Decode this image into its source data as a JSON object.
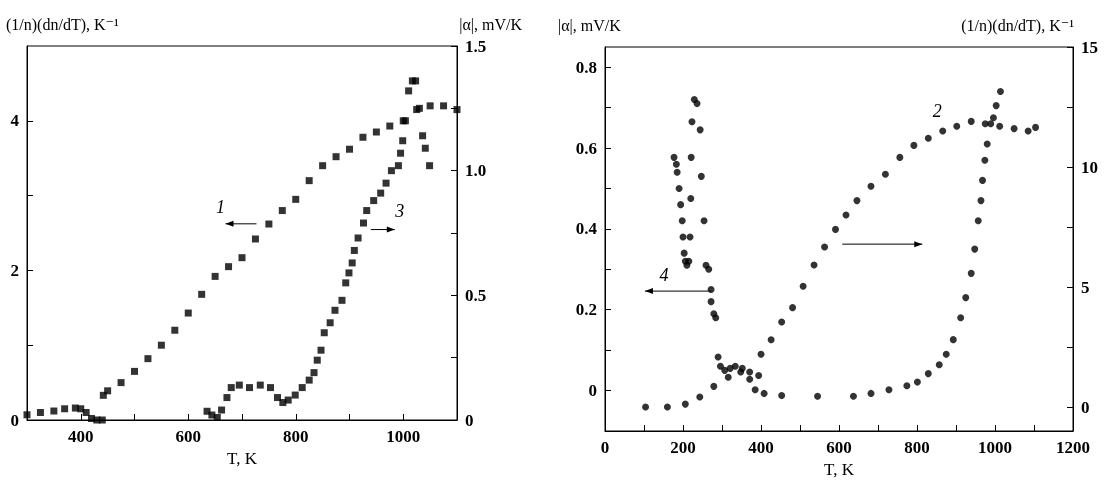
{
  "chart_data": [
    {
      "type": "scatter",
      "xlabel": "T, K",
      "ylabel": "(1/n)(dn/dT), K⁻¹",
      "y2label": "|α|, mV/K",
      "marker": "square",
      "xlim": [
        300,
        1100
      ],
      "xticks": [
        400,
        {
          "value": 500,
          "label": null
        },
        600,
        {
          "value": 700,
          "label": null
        },
        800,
        {
          "value": 900,
          "label": null
        },
        1000
      ],
      "ylim": [
        0,
        5
      ],
      "yticks": [
        0,
        {
          "value": 1,
          "label": null
        },
        2,
        {
          "value": 3,
          "label": null
        },
        4
      ],
      "y2lim": [
        0,
        1.5
      ],
      "y2ticks": [
        0,
        {
          "value": 0.25,
          "label": null
        },
        0.5,
        {
          "value": 0.75,
          "label": null
        },
        {
          "value": 1,
          "label": "1.0"
        },
        {
          "value": 1.25,
          "label": null
        },
        1.5
      ],
      "series": [
        {
          "color": "#000000",
          "x": [
            300,
            325,
            350,
            370,
            390,
            400,
            410,
            420,
            430,
            440,
            442,
            450,
            475,
            500,
            525,
            550,
            575,
            600,
            625,
            650,
            675,
            700,
            725,
            750,
            775,
            800,
            825,
            850,
            875,
            900,
            925,
            950,
            975,
            1000,
            1025,
            1050,
            1075,
            1100
          ],
          "values": [
            0.07,
            0.1,
            0.12,
            0.15,
            0.16,
            0.15,
            0.1,
            0.02,
            0,
            0,
            0.33,
            0.39,
            0.5,
            0.65,
            0.82,
            1.0,
            1.2,
            1.43,
            1.68,
            1.92,
            2.05,
            2.17,
            2.42,
            2.62,
            2.8,
            2.95,
            3.2,
            3.4,
            3.52,
            3.62,
            3.78,
            3.85,
            3.93,
            4.0,
            4.15,
            4.2,
            4.2,
            4.15
          ]
        },
        {
          "color": "#000000",
          "axis": "y2",
          "x": [
            635,
            644,
            654,
            662,
            672,
            680,
            695,
            714,
            734,
            753,
            766,
            776,
            786,
            799,
            812,
            825,
            834,
            840,
            847,
            853,
            864,
            873,
            886,
            893,
            899,
            905,
            909,
            916,
            926,
            932,
            945,
            958,
            968,
            978,
            991,
            995,
            999,
            1004,
            1010,
            1017,
            1023,
            1030,
            1036,
            1041,
            1049
          ],
          "values": [
            0.035,
            0.02,
            0.01,
            0.04,
            0.09,
            0.13,
            0.14,
            0.13,
            0.14,
            0.13,
            0.09,
            0.07,
            0.08,
            0.1,
            0.13,
            0.16,
            0.19,
            0.24,
            0.28,
            0.35,
            0.39,
            0.44,
            0.48,
            0.55,
            0.59,
            0.63,
            0.68,
            0.73,
            0.79,
            0.84,
            0.88,
            0.91,
            0.95,
            1.0,
            1.02,
            1.07,
            1.12,
            1.2,
            1.32,
            1.36,
            1.36,
            1.25,
            1.14,
            1.09,
            1.02
          ]
        }
      ],
      "annotations": [
        "1",
        "3"
      ]
    },
    {
      "type": "scatter",
      "xlabel": "T, K",
      "ylabel": "|α|, mV/K",
      "y2label": "(1/n)(dn/dT), K⁻¹",
      "marker": "circle",
      "xlim": [
        0,
        1200
      ],
      "xticks": [
        0,
        {
          "value": 100,
          "label": null
        },
        200,
        {
          "value": 300,
          "label": null
        },
        400,
        {
          "value": 500,
          "label": null
        },
        600,
        {
          "value": 700,
          "label": null
        },
        800,
        {
          "value": 900,
          "label": null
        },
        1000,
        {
          "value": 1100,
          "label": null
        },
        1200
      ],
      "ylim": [
        -0.1,
        0.85
      ],
      "yticks": [
        0,
        {
          "value": 0.1,
          "label": null
        },
        0.2,
        {
          "value": 0.3,
          "label": null
        },
        0.4,
        {
          "value": 0.5,
          "label": null
        },
        0.6,
        {
          "value": 0.7,
          "label": null
        },
        0.8
      ],
      "y2lim": [
        -1,
        15
      ],
      "y2ticks": [
        0,
        {
          "value": 2.5,
          "label": null
        },
        5,
        {
          "value": 7.5,
          "label": null
        },
        10,
        {
          "value": 12.5,
          "label": null
        },
        15
      ],
      "series": [
        {
          "color": "#000000",
          "x": [
            177,
            183,
            185,
            190,
            194,
            198,
            200,
            203,
            206,
            210,
            215,
            218,
            220,
            221,
            223,
            229,
            236,
            244,
            247,
            254,
            259,
            266,
            272,
            272,
            279,
            284,
            290,
            296,
            307,
            321,
            334,
            352,
            371,
            385,
            408,
            453,
            545,
            637,
            682,
            728,
            774,
            801,
            829,
            857,
            875,
            893,
            912,
            925,
            939,
            948,
            957,
            964,
            968,
            974,
            980,
            989,
            996,
            1003,
            1014
          ],
          "values": [
            0.577,
            0.56,
            0.54,
            0.5,
            0.46,
            0.42,
            0.38,
            0.34,
            0.32,
            0.31,
            0.32,
            0.38,
            0.475,
            0.577,
            0.665,
            0.72,
            0.71,
            0.645,
            0.53,
            0.42,
            0.31,
            0.3,
            0.25,
            0.22,
            0.19,
            0.18,
            0.083,
            0.06,
            0.05,
            0.055,
            0.06,
            0.055,
            0.028,
            0.002,
            -0.007,
            -0.012,
            -0.014,
            -0.014,
            -0.007,
            0.002,
            0.012,
            0.021,
            0.042,
            0.064,
            0.09,
            0.126,
            0.18,
            0.23,
            0.29,
            0.35,
            0.42,
            0.47,
            0.52,
            0.57,
            0.61,
            0.66,
            0.675,
            0.705,
            0.74
          ]
        },
        {
          "color": "#000000",
          "axis": "y2",
          "x": [
            104,
            160,
            206,
            243,
            279,
            316,
            348,
            371,
            394,
            400,
            426,
            453,
            481,
            508,
            536,
            563,
            591,
            618,
            646,
            682,
            719,
            756,
            792,
            829,
            866,
            902,
            939,
            975,
            1012,
            1049,
            1085,
            1104
          ],
          "values": [
            0,
            0,
            0.12,
            0.42,
            0.86,
            1.24,
            1.46,
            1.46,
            1.31,
            2.2,
            2.8,
            3.54,
            4.14,
            5.03,
            5.92,
            6.67,
            7.4,
            8.0,
            8.6,
            9.2,
            9.7,
            10.4,
            10.9,
            11.2,
            11.5,
            11.7,
            11.9,
            11.8,
            11.7,
            11.6,
            11.5,
            11.65
          ]
        }
      ],
      "annotations": [
        "4",
        "2"
      ]
    }
  ]
}
